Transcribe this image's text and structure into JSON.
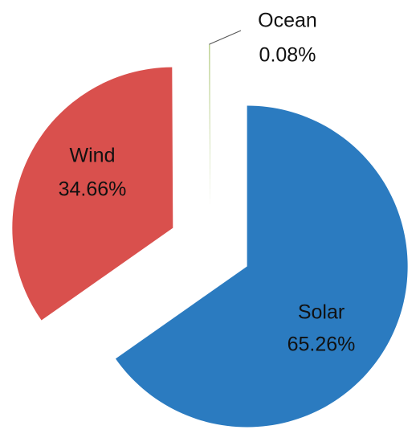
{
  "chart_data": {
    "type": "pie",
    "categories": [
      "Solar",
      "Wind",
      "Ocean"
    ],
    "values": [
      65.26,
      34.66,
      0.08
    ],
    "value_labels": [
      "65.26%",
      "34.66%",
      "0.08%"
    ],
    "colors": [
      "#2b7bc0",
      "#d9504d",
      "#9bbb59"
    ]
  }
}
